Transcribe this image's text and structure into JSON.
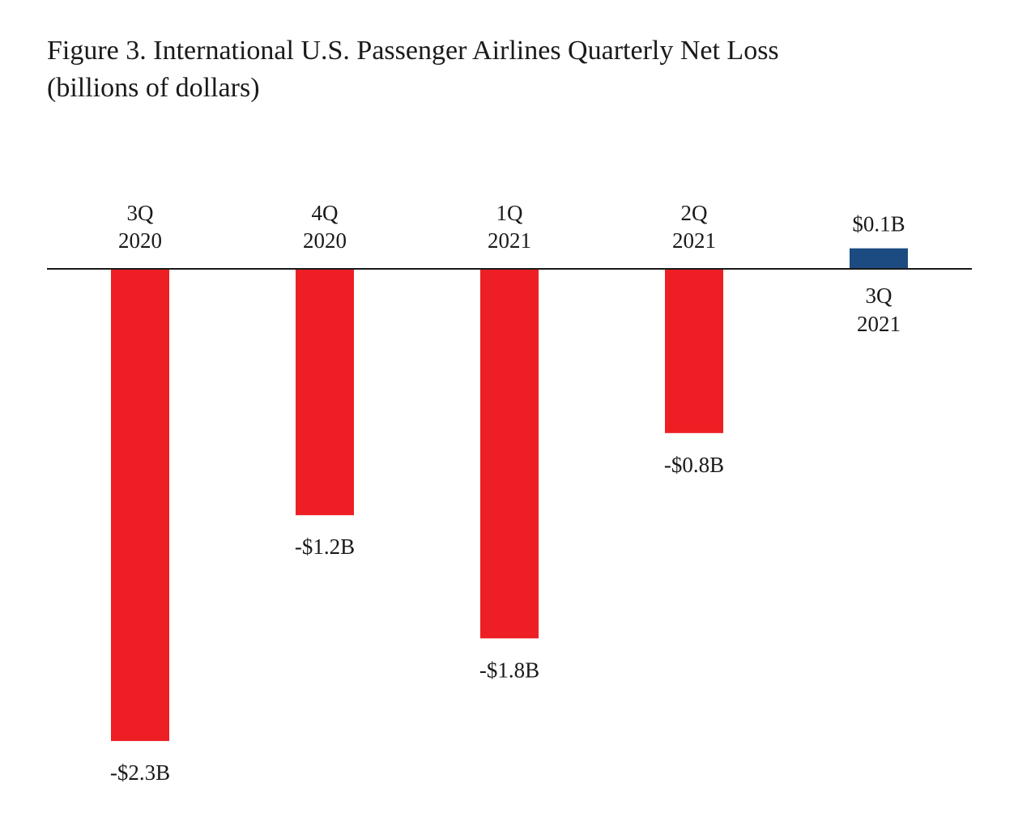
{
  "chart_data": {
    "type": "bar",
    "title": "Figure 3. International U.S. Passenger Airlines Quarterly Net Loss",
    "subtitle": "(billions of dollars)",
    "categories": [
      {
        "line1": "3Q",
        "line2": "2020"
      },
      {
        "line1": "4Q",
        "line2": "2020"
      },
      {
        "line1": "1Q",
        "line2": "2021"
      },
      {
        "line1": "2Q",
        "line2": "2021"
      },
      {
        "line1": "3Q",
        "line2": "2021"
      }
    ],
    "values": [
      -2.3,
      -1.2,
      -1.8,
      -0.8,
      0.1
    ],
    "value_labels": [
      "-$2.3B",
      "-$1.2B",
      "-$1.8B",
      "-$0.8B",
      "$0.1B"
    ],
    "ylim": [
      -2.3,
      0.15
    ],
    "grid": false,
    "legend": "none",
    "colors": {
      "negative": "#ed1f24",
      "positive": "#1c4b82",
      "axis": "#1a1a1a"
    }
  }
}
